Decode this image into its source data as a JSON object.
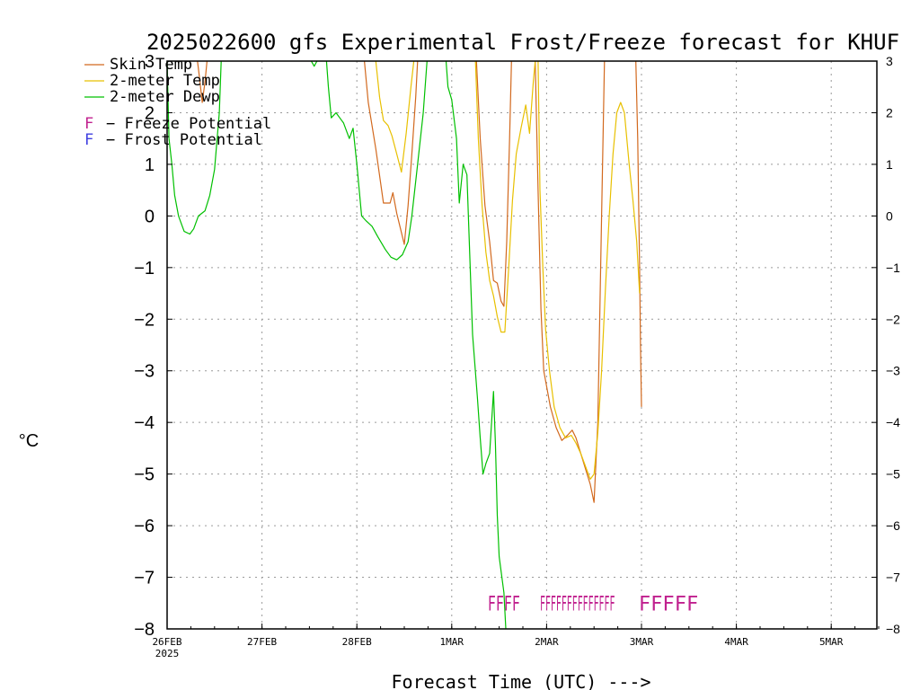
{
  "chart_data": {
    "type": "line",
    "title": "2025022600 gfs Experimental Frost/Freeze forecast for KHUF",
    "xlabel": "Forecast Time (UTC) --->",
    "ylabel": "°C",
    "ylim": [
      -8,
      3
    ],
    "y_ticks": [
      3,
      2,
      1,
      0,
      -1,
      -2,
      -3,
      -4,
      -5,
      -6,
      -7,
      -8
    ],
    "y_tick_labels_left": [
      "3",
      "2",
      "1",
      "0",
      "−1",
      "−2",
      "−3",
      "−4",
      "−5",
      "−6",
      "−7",
      "−8"
    ],
    "y_tick_labels_right": [
      "3",
      "2",
      "1",
      "0",
      "−1",
      "−2",
      "−3",
      "−4",
      "−5",
      "−6",
      "−7",
      "−8"
    ],
    "xlim_days": [
      0,
      7.5
    ],
    "x_ticks": [
      {
        "day": 0,
        "label": "26FEB",
        "sublabel": "2025"
      },
      {
        "day": 1,
        "label": "27FEB"
      },
      {
        "day": 2,
        "label": "28FEB"
      },
      {
        "day": 3,
        "label": "1MAR"
      },
      {
        "day": 4,
        "label": "2MAR"
      },
      {
        "day": 5,
        "label": "3MAR"
      },
      {
        "day": 6,
        "label": "4MAR"
      },
      {
        "day": 7,
        "label": "5MAR"
      }
    ],
    "grid": true,
    "legend_position": "top-left",
    "legend": [
      {
        "label": "Skin Temp",
        "color": "#d2691e"
      },
      {
        "label": "2-meter Temp",
        "color": "#e8c000"
      },
      {
        "label": "2-meter Dewp",
        "color": "#00c000"
      }
    ],
    "symbols_legend": [
      {
        "symbol": "F",
        "text": "− Freeze Potential",
        "color": "#c0208e"
      },
      {
        "symbol": "F",
        "text": "− Frost Potential",
        "color": "#4040e0"
      }
    ],
    "series": [
      {
        "name": "Skin Temp",
        "color": "#d2691e",
        "segments": [
          [
            [
              0.42,
              3.0
            ],
            [
              0.4,
              2.6
            ],
            [
              0.37,
              2.2
            ],
            [
              0.34,
              2.7
            ],
            [
              0.32,
              3.0
            ]
          ],
          [
            [
              2.08,
              3.0
            ],
            [
              2.12,
              2.2
            ],
            [
              2.2,
              1.3
            ],
            [
              2.28,
              0.25
            ],
            [
              2.35,
              0.25
            ],
            [
              2.38,
              0.45
            ],
            [
              2.42,
              0.05
            ],
            [
              2.46,
              -0.25
            ],
            [
              2.5,
              -0.55
            ],
            [
              2.54,
              0.2
            ],
            [
              2.58,
              1.2
            ],
            [
              2.62,
              2.3
            ],
            [
              2.64,
              3.0
            ]
          ],
          [
            [
              3.26,
              3.0
            ],
            [
              3.3,
              1.5
            ],
            [
              3.35,
              0.2
            ],
            [
              3.4,
              -0.5
            ],
            [
              3.44,
              -1.25
            ],
            [
              3.48,
              -1.3
            ],
            [
              3.52,
              -1.65
            ],
            [
              3.55,
              -1.75
            ],
            [
              3.58,
              -0.5
            ],
            [
              3.61,
              1.5
            ],
            [
              3.63,
              3.0
            ]
          ],
          [
            [
              3.88,
              3.0
            ],
            [
              3.91,
              0.5
            ],
            [
              3.94,
              -1.8
            ],
            [
              3.97,
              -3.0
            ],
            [
              4.0,
              -3.3
            ],
            [
              4.04,
              -3.7
            ],
            [
              4.1,
              -4.1
            ],
            [
              4.16,
              -4.35
            ],
            [
              4.22,
              -4.25
            ],
            [
              4.27,
              -4.15
            ],
            [
              4.31,
              -4.3
            ],
            [
              4.36,
              -4.6
            ],
            [
              4.41,
              -4.9
            ],
            [
              4.46,
              -5.2
            ],
            [
              4.5,
              -5.55
            ],
            [
              4.54,
              -4.0
            ],
            [
              4.58,
              0.0
            ],
            [
              4.61,
              3.0
            ]
          ],
          [
            [
              4.94,
              3.0
            ],
            [
              4.96,
              1.5
            ],
            [
              4.98,
              -1.0
            ],
            [
              4.99,
              -2.5
            ],
            [
              5.0,
              -3.7
            ]
          ]
        ]
      },
      {
        "name": "2-meter Temp",
        "color": "#e8c000",
        "segments": [
          [
            [
              2.2,
              3.0
            ],
            [
              2.24,
              2.3
            ],
            [
              2.28,
              1.85
            ],
            [
              2.33,
              1.75
            ],
            [
              2.37,
              1.55
            ],
            [
              2.42,
              1.2
            ],
            [
              2.47,
              0.85
            ],
            [
              2.52,
              1.6
            ],
            [
              2.57,
              2.5
            ],
            [
              2.6,
              3.0
            ]
          ],
          [
            [
              3.25,
              3.0
            ],
            [
              3.28,
              1.5
            ],
            [
              3.32,
              0.2
            ],
            [
              3.36,
              -0.7
            ],
            [
              3.4,
              -1.25
            ],
            [
              3.44,
              -1.55
            ],
            [
              3.48,
              -1.95
            ],
            [
              3.52,
              -2.25
            ],
            [
              3.56,
              -2.25
            ],
            [
              3.6,
              -1.0
            ],
            [
              3.64,
              0.3
            ],
            [
              3.68,
              1.2
            ],
            [
              3.73,
              1.7
            ],
            [
              3.78,
              2.15
            ],
            [
              3.82,
              1.6
            ],
            [
              3.86,
              2.6
            ],
            [
              3.88,
              3.0
            ]
          ],
          [
            [
              3.91,
              3.0
            ],
            [
              3.93,
              0.5
            ],
            [
              3.96,
              -1.0
            ],
            [
              3.99,
              -2.2
            ],
            [
              4.03,
              -3.0
            ],
            [
              4.08,
              -3.7
            ],
            [
              4.14,
              -4.1
            ],
            [
              4.2,
              -4.3
            ],
            [
              4.26,
              -4.25
            ],
            [
              4.31,
              -4.4
            ],
            [
              4.36,
              -4.6
            ],
            [
              4.4,
              -4.8
            ],
            [
              4.46,
              -5.1
            ],
            [
              4.5,
              -5.0
            ],
            [
              4.54,
              -4.2
            ],
            [
              4.58,
              -3.0
            ],
            [
              4.62,
              -1.4
            ],
            [
              4.66,
              0.0
            ],
            [
              4.7,
              1.2
            ],
            [
              4.74,
              2.0
            ],
            [
              4.78,
              2.2
            ],
            [
              4.82,
              2.0
            ],
            [
              4.87,
              1.0
            ],
            [
              4.91,
              0.3
            ],
            [
              4.95,
              -0.5
            ],
            [
              4.98,
              -1.5
            ]
          ]
        ]
      },
      {
        "name": "2-meter Dewp",
        "color": "#00c000",
        "segments": [
          [
            [
              0.0,
              3.0
            ],
            [
              0.02,
              1.5
            ],
            [
              0.05,
              1.0
            ],
            [
              0.08,
              0.4
            ],
            [
              0.12,
              0.0
            ],
            [
              0.18,
              -0.3
            ],
            [
              0.24,
              -0.35
            ],
            [
              0.28,
              -0.25
            ],
            [
              0.33,
              0.0
            ],
            [
              0.4,
              0.1
            ],
            [
              0.45,
              0.4
            ],
            [
              0.5,
              0.9
            ],
            [
              0.55,
              2.0
            ],
            [
              0.57,
              3.0
            ]
          ],
          [
            [
              1.52,
              3.0
            ],
            [
              1.55,
              2.9
            ],
            [
              1.58,
              3.0
            ]
          ],
          [
            [
              1.68,
              3.0
            ],
            [
              1.7,
              2.5
            ],
            [
              1.73,
              1.9
            ],
            [
              1.78,
              2.0
            ],
            [
              1.82,
              1.9
            ],
            [
              1.86,
              1.8
            ],
            [
              1.92,
              1.5
            ],
            [
              1.96,
              1.7
            ],
            [
              2.0,
              1.0
            ],
            [
              2.05,
              0.0
            ],
            [
              2.1,
              -0.1
            ],
            [
              2.16,
              -0.2
            ],
            [
              2.22,
              -0.4
            ],
            [
              2.3,
              -0.65
            ],
            [
              2.36,
              -0.8
            ],
            [
              2.42,
              -0.85
            ],
            [
              2.48,
              -0.75
            ],
            [
              2.54,
              -0.5
            ],
            [
              2.58,
              0.0
            ],
            [
              2.64,
              1.0
            ],
            [
              2.7,
              2.0
            ],
            [
              2.74,
              3.0
            ]
          ],
          [
            [
              2.94,
              3.0
            ],
            [
              2.96,
              2.5
            ],
            [
              3.0,
              2.25
            ],
            [
              3.05,
              1.5
            ],
            [
              3.08,
              0.25
            ],
            [
              3.12,
              1.0
            ],
            [
              3.16,
              0.8
            ],
            [
              3.22,
              -2.3
            ],
            [
              3.27,
              -3.5
            ],
            [
              3.3,
              -4.3
            ],
            [
              3.33,
              -5.0
            ],
            [
              3.36,
              -4.8
            ],
            [
              3.4,
              -4.6
            ],
            [
              3.44,
              -3.4
            ],
            [
              3.46,
              -4.4
            ],
            [
              3.48,
              -5.8
            ],
            [
              3.5,
              -6.6
            ],
            [
              3.55,
              -7.3
            ],
            [
              3.57,
              -8.0
            ]
          ]
        ]
      }
    ],
    "potential_markers": [
      {
        "type": "freeze",
        "text": "FFFF",
        "color": "#c0208e",
        "day_start": 3.38,
        "day_end": 3.72,
        "y": -7.5
      },
      {
        "type": "freeze",
        "text": "FFFFFFFFFFFFFF",
        "color": "#c0208e",
        "day_start": 3.93,
        "day_end": 4.72,
        "y": -7.5
      },
      {
        "type": "freeze",
        "text": "FFFFF",
        "color": "#c0208e",
        "day_start": 4.97,
        "day_end": 5.6,
        "y": -7.5
      }
    ]
  }
}
